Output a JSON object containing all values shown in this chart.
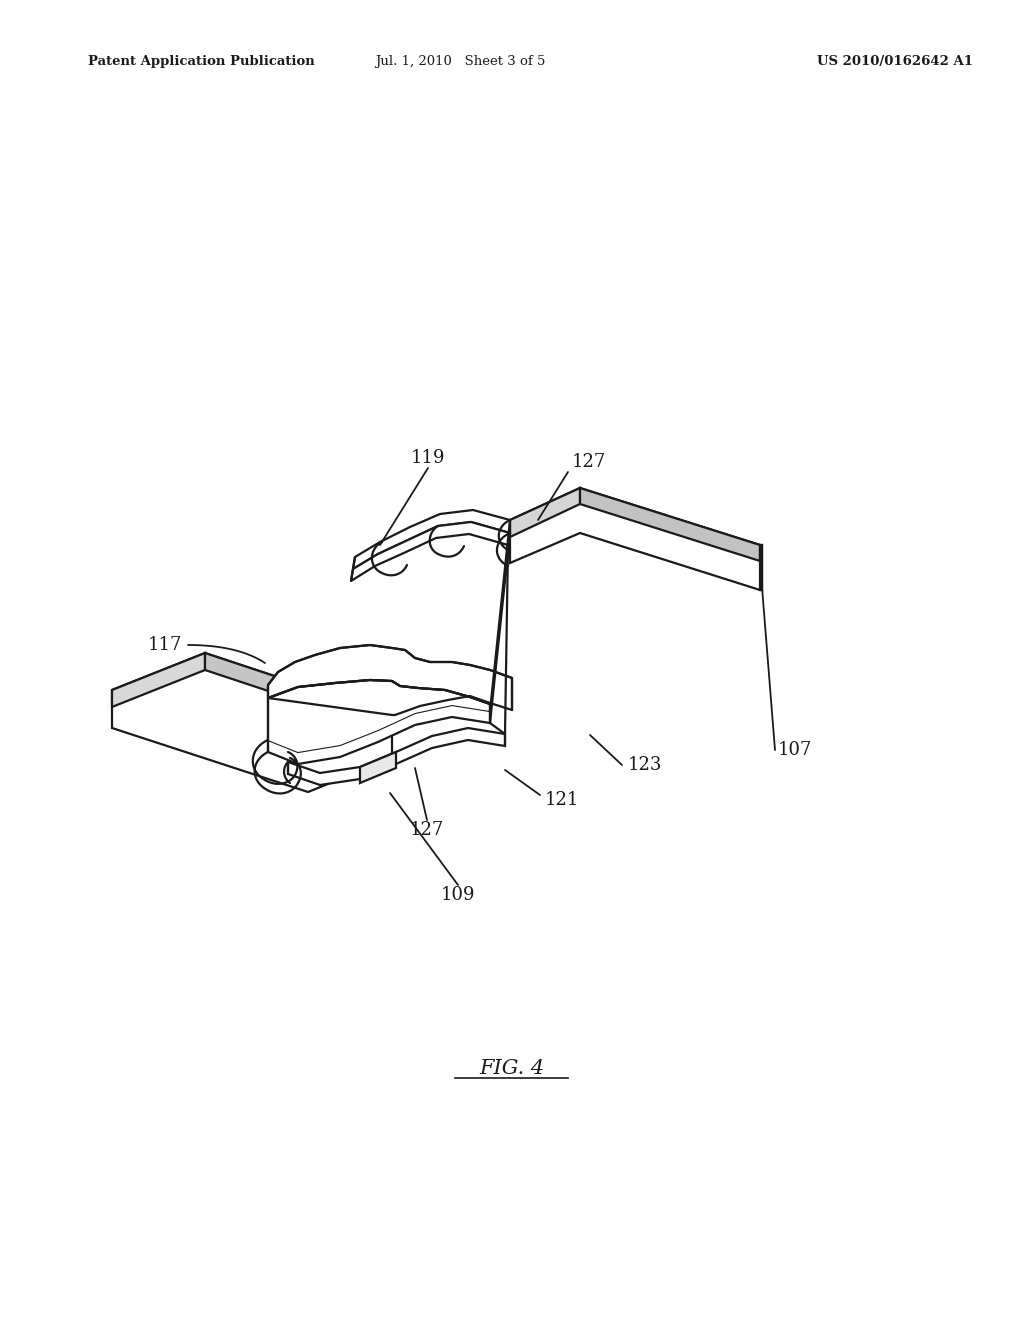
{
  "bg_color": "#ffffff",
  "line_color": "#1a1a1a",
  "lw": 1.6,
  "header_left": "Patent Application Publication",
  "header_mid": "Jul. 1, 2010   Sheet 3 of 5",
  "header_right": "US 2010/0162642 A1",
  "fig_label": "FIG. 4",
  "label_fontsize": 13,
  "header_fontsize": 9.5,
  "figlabel_fontsize": 15
}
